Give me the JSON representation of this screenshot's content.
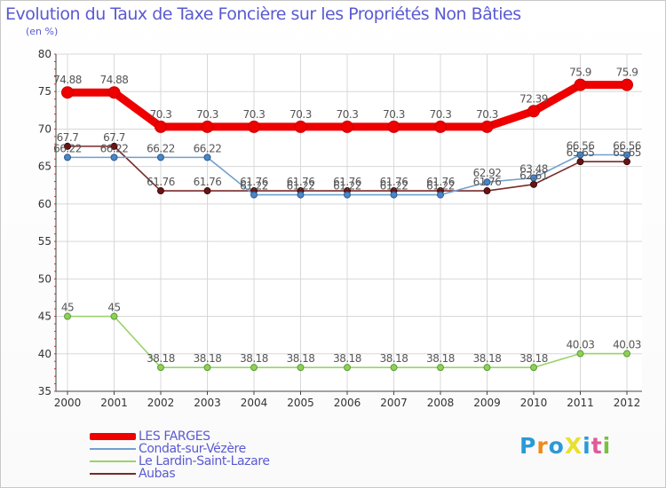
{
  "header": {
    "title": "Evolution du Taux de Taxe Foncière sur les Propriétés Non Bâties",
    "unit": "(en %)"
  },
  "chart_data": {
    "type": "line",
    "title": "Evolution du Taux de Taxe Foncière sur les Propriétés Non Bâties",
    "ylabel": "(en %)",
    "xlabel": "",
    "categories": [
      "2000",
      "2001",
      "2002",
      "2003",
      "2004",
      "2005",
      "2006",
      "2007",
      "2008",
      "2009",
      "2010",
      "2011",
      "2012"
    ],
    "ylim": [
      35,
      80
    ],
    "yticks": [
      35,
      40,
      45,
      50,
      55,
      60,
      65,
      70,
      75,
      80
    ],
    "grid": true,
    "legend_position": "bottom-left",
    "series": [
      {
        "name": "LES FARGES",
        "color": "#ee0000",
        "values": [
          74.88,
          74.88,
          70.3,
          70.3,
          70.3,
          70.3,
          70.3,
          70.3,
          70.3,
          70.3,
          72.39,
          75.9,
          75.9
        ],
        "labels": [
          "74.88",
          "74.88",
          "70.3",
          "70.3",
          "70.3",
          "70.3",
          "70.3",
          "70.3",
          "70.3",
          "70.3",
          "72.39",
          "75.9",
          "75.9"
        ]
      },
      {
        "name": "Condat-sur-Vézère",
        "color": "#6fa0cf",
        "values": [
          66.22,
          66.22,
          66.22,
          66.22,
          61.22,
          61.22,
          61.22,
          61.22,
          61.22,
          62.92,
          63.48,
          66.56,
          66.56
        ],
        "labels": [
          "66.22",
          "66.22",
          "66.22",
          "66.22",
          "61.22",
          "61.22",
          "61.22",
          "61.22",
          "61.22",
          "62.92",
          "63.48",
          "66.56",
          "66.56"
        ]
      },
      {
        "name": "Le Lardin-Saint-Lazare",
        "color": "#9ad36a",
        "values": [
          45,
          45,
          38.18,
          38.18,
          38.18,
          38.18,
          38.18,
          38.18,
          38.18,
          38.18,
          38.18,
          40.03,
          40.03
        ],
        "labels": [
          "45",
          "45",
          "38.18",
          "38.18",
          "38.18",
          "38.18",
          "38.18",
          "38.18",
          "38.18",
          "38.18",
          "38.18",
          "40.03",
          "40.03"
        ]
      },
      {
        "name": "Aubas",
        "color": "#7a2a2a",
        "values": [
          67.7,
          67.7,
          61.76,
          61.76,
          61.76,
          61.76,
          61.76,
          61.76,
          61.76,
          61.76,
          62.61,
          65.65,
          65.65
        ],
        "labels": [
          "67.7",
          "67.7",
          "61.76",
          "61.76",
          "61.76",
          "61.76",
          "61.76",
          "61.76",
          "61.76",
          "61.76",
          "62.61",
          "65.65",
          "65.65"
        ]
      }
    ]
  },
  "logo": {
    "text": "ProXiti"
  }
}
